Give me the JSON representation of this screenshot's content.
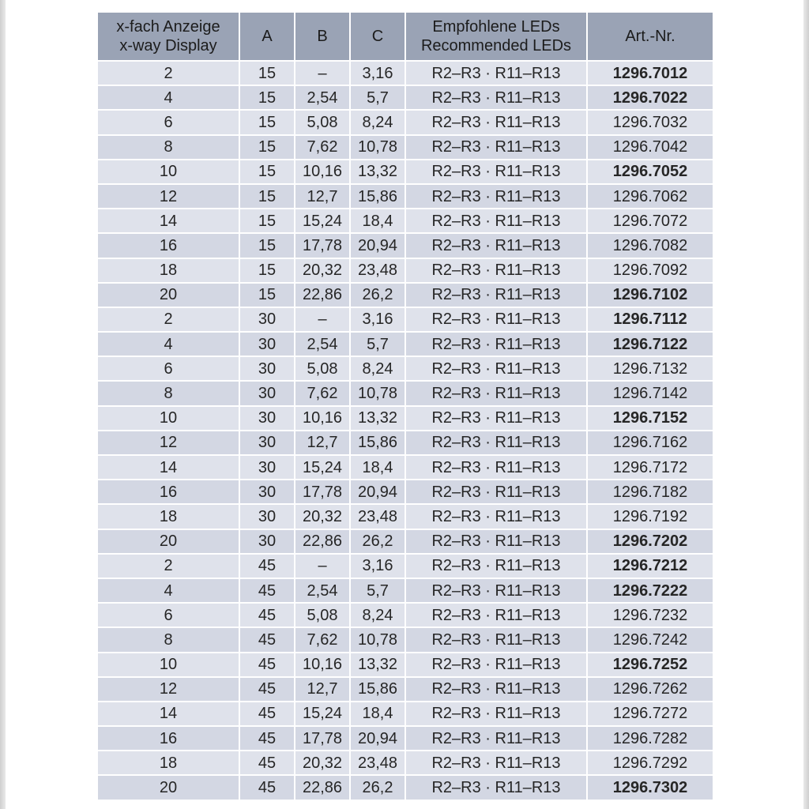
{
  "colors": {
    "header_bg": "#9aa3b5",
    "row_odd": "#dfe2eb",
    "row_even": "#d3d7e3",
    "grid": "#ffffff",
    "text": "#262626"
  },
  "table": {
    "header": {
      "col_display_line1": "x-fach Anzeige",
      "col_display_line2": "x-way Display",
      "col_a": "A",
      "col_b": "B",
      "col_c": "C",
      "col_leds_line1": "Empfohlene LEDs",
      "col_leds_line2": "Recommended LEDs",
      "col_art": "Art.-Nr."
    },
    "rows": [
      {
        "x": "2",
        "a": "15",
        "b": "–",
        "c": "3,16",
        "leds": "R2–R3 · R11–R13",
        "art": "1296.7012",
        "bold": true
      },
      {
        "x": "4",
        "a": "15",
        "b": "2,54",
        "c": "5,7",
        "leds": "R2–R3 · R11–R13",
        "art": "1296.7022",
        "bold": true
      },
      {
        "x": "6",
        "a": "15",
        "b": "5,08",
        "c": "8,24",
        "leds": "R2–R3 · R11–R13",
        "art": "1296.7032",
        "bold": false
      },
      {
        "x": "8",
        "a": "15",
        "b": "7,62",
        "c": "10,78",
        "leds": "R2–R3 · R11–R13",
        "art": "1296.7042",
        "bold": false
      },
      {
        "x": "10",
        "a": "15",
        "b": "10,16",
        "c": "13,32",
        "leds": "R2–R3 · R11–R13",
        "art": "1296.7052",
        "bold": true
      },
      {
        "x": "12",
        "a": "15",
        "b": "12,7",
        "c": "15,86",
        "leds": "R2–R3 · R11–R13",
        "art": "1296.7062",
        "bold": false
      },
      {
        "x": "14",
        "a": "15",
        "b": "15,24",
        "c": "18,4",
        "leds": "R2–R3 · R11–R13",
        "art": "1296.7072",
        "bold": false
      },
      {
        "x": "16",
        "a": "15",
        "b": "17,78",
        "c": "20,94",
        "leds": "R2–R3 · R11–R13",
        "art": "1296.7082",
        "bold": false
      },
      {
        "x": "18",
        "a": "15",
        "b": "20,32",
        "c": "23,48",
        "leds": "R2–R3 · R11–R13",
        "art": "1296.7092",
        "bold": false
      },
      {
        "x": "20",
        "a": "15",
        "b": "22,86",
        "c": "26,2",
        "leds": "R2–R3 · R11–R13",
        "art": "1296.7102",
        "bold": true
      },
      {
        "x": "2",
        "a": "30",
        "b": "–",
        "c": "3,16",
        "leds": "R2–R3 · R11–R13",
        "art": "1296.7112",
        "bold": true
      },
      {
        "x": "4",
        "a": "30",
        "b": "2,54",
        "c": "5,7",
        "leds": "R2–R3 · R11–R13",
        "art": "1296.7122",
        "bold": true
      },
      {
        "x": "6",
        "a": "30",
        "b": "5,08",
        "c": "8,24",
        "leds": "R2–R3 · R11–R13",
        "art": "1296.7132",
        "bold": false
      },
      {
        "x": "8",
        "a": "30",
        "b": "7,62",
        "c": "10,78",
        "leds": "R2–R3 · R11–R13",
        "art": "1296.7142",
        "bold": false
      },
      {
        "x": "10",
        "a": "30",
        "b": "10,16",
        "c": "13,32",
        "leds": "R2–R3 · R11–R13",
        "art": "1296.7152",
        "bold": true
      },
      {
        "x": "12",
        "a": "30",
        "b": "12,7",
        "c": "15,86",
        "leds": "R2–R3 · R11–R13",
        "art": "1296.7162",
        "bold": false
      },
      {
        "x": "14",
        "a": "30",
        "b": "15,24",
        "c": "18,4",
        "leds": "R2–R3 · R11–R13",
        "art": "1296.7172",
        "bold": false
      },
      {
        "x": "16",
        "a": "30",
        "b": "17,78",
        "c": "20,94",
        "leds": "R2–R3 · R11–R13",
        "art": "1296.7182",
        "bold": false
      },
      {
        "x": "18",
        "a": "30",
        "b": "20,32",
        "c": "23,48",
        "leds": "R2–R3 · R11–R13",
        "art": "1296.7192",
        "bold": false
      },
      {
        "x": "20",
        "a": "30",
        "b": "22,86",
        "c": "26,2",
        "leds": "R2–R3 · R11–R13",
        "art": "1296.7202",
        "bold": true
      },
      {
        "x": "2",
        "a": "45",
        "b": "–",
        "c": "3,16",
        "leds": "R2–R3 · R11–R13",
        "art": "1296.7212",
        "bold": true
      },
      {
        "x": "4",
        "a": "45",
        "b": "2,54",
        "c": "5,7",
        "leds": "R2–R3 · R11–R13",
        "art": "1296.7222",
        "bold": true
      },
      {
        "x": "6",
        "a": "45",
        "b": "5,08",
        "c": "8,24",
        "leds": "R2–R3 · R11–R13",
        "art": "1296.7232",
        "bold": false
      },
      {
        "x": "8",
        "a": "45",
        "b": "7,62",
        "c": "10,78",
        "leds": "R2–R3 · R11–R13",
        "art": "1296.7242",
        "bold": false
      },
      {
        "x": "10",
        "a": "45",
        "b": "10,16",
        "c": "13,32",
        "leds": "R2–R3 · R11–R13",
        "art": "1296.7252",
        "bold": true
      },
      {
        "x": "12",
        "a": "45",
        "b": "12,7",
        "c": "15,86",
        "leds": "R2–R3 · R11–R13",
        "art": "1296.7262",
        "bold": false
      },
      {
        "x": "14",
        "a": "45",
        "b": "15,24",
        "c": "18,4",
        "leds": "R2–R3 · R11–R13",
        "art": "1296.7272",
        "bold": false
      },
      {
        "x": "16",
        "a": "45",
        "b": "17,78",
        "c": "20,94",
        "leds": "R2–R3 · R11–R13",
        "art": "1296.7282",
        "bold": false
      },
      {
        "x": "18",
        "a": "45",
        "b": "20,32",
        "c": "23,48",
        "leds": "R2–R3 · R11–R13",
        "art": "1296.7292",
        "bold": false
      },
      {
        "x": "20",
        "a": "45",
        "b": "22,86",
        "c": "26,2",
        "leds": "R2–R3 · R11–R13",
        "art": "1296.7302",
        "bold": true
      }
    ]
  }
}
